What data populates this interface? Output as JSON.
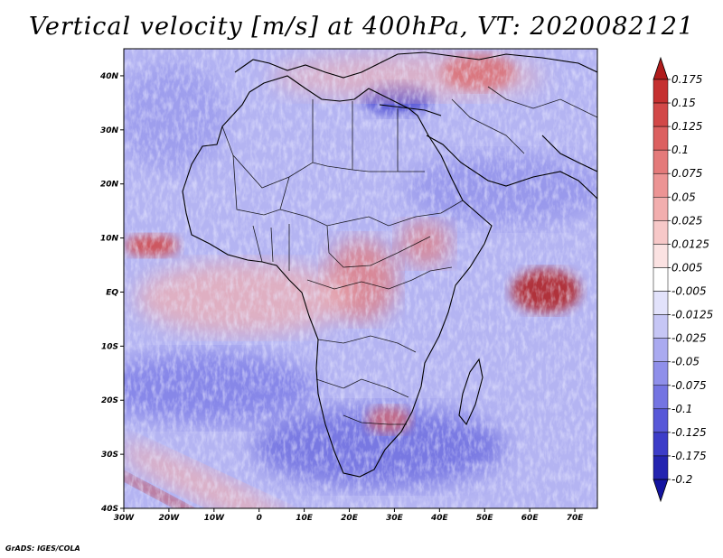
{
  "title": "Vertical velocity [m/s] at 400hPa, VT: 2020082121",
  "credit": "GrADS: IGES/COLA",
  "chart_data": {
    "type": "heatmap",
    "variable": "Vertical velocity",
    "units": "m/s",
    "level": "400hPa",
    "valid_time": "2020082121",
    "lon_range": [
      -30,
      75
    ],
    "lat_range": [
      -40,
      45
    ],
    "x_ticks": [
      {
        "value": -30,
        "label": "30W"
      },
      {
        "value": -20,
        "label": "20W"
      },
      {
        "value": -10,
        "label": "10W"
      },
      {
        "value": 0,
        "label": "0"
      },
      {
        "value": 10,
        "label": "10E"
      },
      {
        "value": 20,
        "label": "20E"
      },
      {
        "value": 30,
        "label": "30E"
      },
      {
        "value": 40,
        "label": "40E"
      },
      {
        "value": 50,
        "label": "50E"
      },
      {
        "value": 60,
        "label": "60E"
      },
      {
        "value": 70,
        "label": "70E"
      }
    ],
    "y_ticks": [
      {
        "value": 40,
        "label": "40N"
      },
      {
        "value": 30,
        "label": "30N"
      },
      {
        "value": 20,
        "label": "20N"
      },
      {
        "value": 10,
        "label": "10N"
      },
      {
        "value": 0,
        "label": "EQ"
      },
      {
        "value": -10,
        "label": "10S"
      },
      {
        "value": -20,
        "label": "20S"
      },
      {
        "value": -30,
        "label": "30S"
      },
      {
        "value": -40,
        "label": "40S"
      }
    ],
    "colorbar": {
      "levels": [
        "0.175",
        "0.15",
        "0.125",
        "0.1",
        "0.075",
        "0.05",
        "0.025",
        "0.0125",
        "0.005",
        "-0.005",
        "-0.0125",
        "-0.025",
        "-0.05",
        "-0.075",
        "-0.1",
        "-0.125",
        "-0.175",
        "-0.2"
      ],
      "colors": [
        "#b01c1c",
        "#c53030",
        "#d24848",
        "#dc6060",
        "#e47a7a",
        "#ec9494",
        "#f2aeae",
        "#f7c8c8",
        "#fbe2e2",
        "#ffffff",
        "#e2e2fb",
        "#c6c6f5",
        "#aaaaf0",
        "#8f8fea",
        "#7474e2",
        "#5858d8",
        "#3c3cc8",
        "#2424b0",
        "#1414a0"
      ]
    },
    "features": [
      {
        "name": "ascent region near 10N off West Africa",
        "lon": -27,
        "lat": 8,
        "sign": "positive"
      },
      {
        "name": "strong ascent east of Somalia coast",
        "lon": 62,
        "lat": -1,
        "sign": "positive"
      },
      {
        "name": "strong ascent central Africa",
        "lon": 22,
        "lat": -3,
        "sign": "positive"
      },
      {
        "name": "broad subsidence over southern Africa",
        "lon": 25,
        "lat": -28,
        "sign": "negative"
      },
      {
        "name": "subsidence over southern Atlantic",
        "lon": -10,
        "lat": -18,
        "sign": "negative"
      }
    ]
  }
}
